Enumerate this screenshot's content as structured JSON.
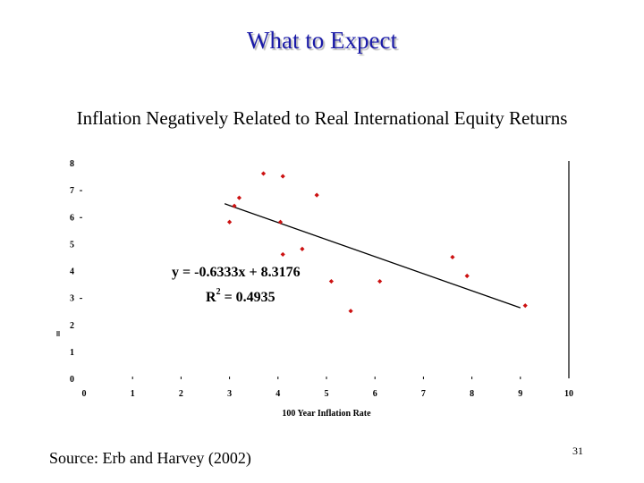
{
  "slide": {
    "title": "What to Expect",
    "subtitle": "Inflation Negatively Related to Real International Equity Returns",
    "source": "Source: Erb and Harvey (2002)",
    "page_number": "31"
  },
  "chart_data": {
    "type": "scatter",
    "title": "Inflation Negatively Related to Real International Equity Returns",
    "xlabel": "100 Year Inflation Rate",
    "ylabel": "",
    "xlim": [
      0,
      10
    ],
    "ylim": [
      0,
      8
    ],
    "x_ticks": [
      "0",
      "1",
      "2",
      "3",
      "4",
      "5",
      "6",
      "7",
      "8",
      "9",
      "10"
    ],
    "y_ticks": [
      "0",
      "1",
      "2",
      "3",
      "4",
      "5",
      "6",
      "7",
      "8"
    ],
    "series": [
      {
        "points": [
          {
            "x": 3.0,
            "y": 5.8
          },
          {
            "x": 3.1,
            "y": 6.4
          },
          {
            "x": 3.2,
            "y": 6.7
          },
          {
            "x": 3.7,
            "y": 7.6
          },
          {
            "x": 4.05,
            "y": 5.8
          },
          {
            "x": 4.1,
            "y": 7.5
          },
          {
            "x": 4.1,
            "y": 4.6
          },
          {
            "x": 4.5,
            "y": 4.8
          },
          {
            "x": 4.8,
            "y": 6.8
          },
          {
            "x": 5.1,
            "y": 3.6
          },
          {
            "x": 5.5,
            "y": 2.5
          },
          {
            "x": 6.1,
            "y": 3.6
          },
          {
            "x": 7.6,
            "y": 4.5
          },
          {
            "x": 7.9,
            "y": 3.8
          },
          {
            "x": 9.1,
            "y": 2.7
          }
        ],
        "color": "#cc1111"
      }
    ],
    "trendline": {
      "slope": -0.6333,
      "intercept": 8.3176,
      "x_range": [
        2.9,
        9.0
      ],
      "equation": "y = -0.6333x + 8.3176",
      "r2_label": "R",
      "r2_sup": "2",
      "r2_value": " = 0.4935"
    },
    "grid": false,
    "legend": "none"
  }
}
